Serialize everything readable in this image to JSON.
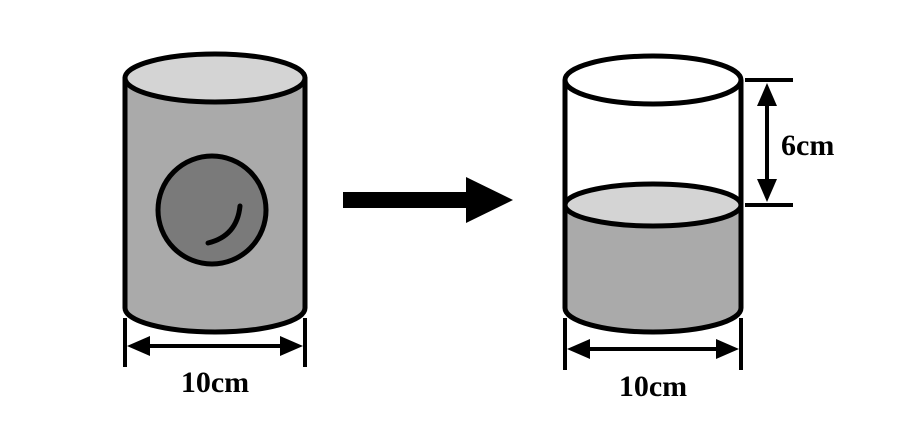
{
  "diagram": {
    "left_cylinder": {
      "width_label": "10cm"
    },
    "right_cylinder": {
      "width_label": "10cm",
      "height_label": "6cm"
    }
  },
  "colors": {
    "stroke": "#000000",
    "fill_cylinder": "#aaaaaa",
    "fill_top": "#d4d4d4",
    "fill_ball": "#7a7a7a",
    "fill_water": "#aaaaaa",
    "fill_water_top": "#d4d4d4",
    "empty": "#ffffff"
  }
}
